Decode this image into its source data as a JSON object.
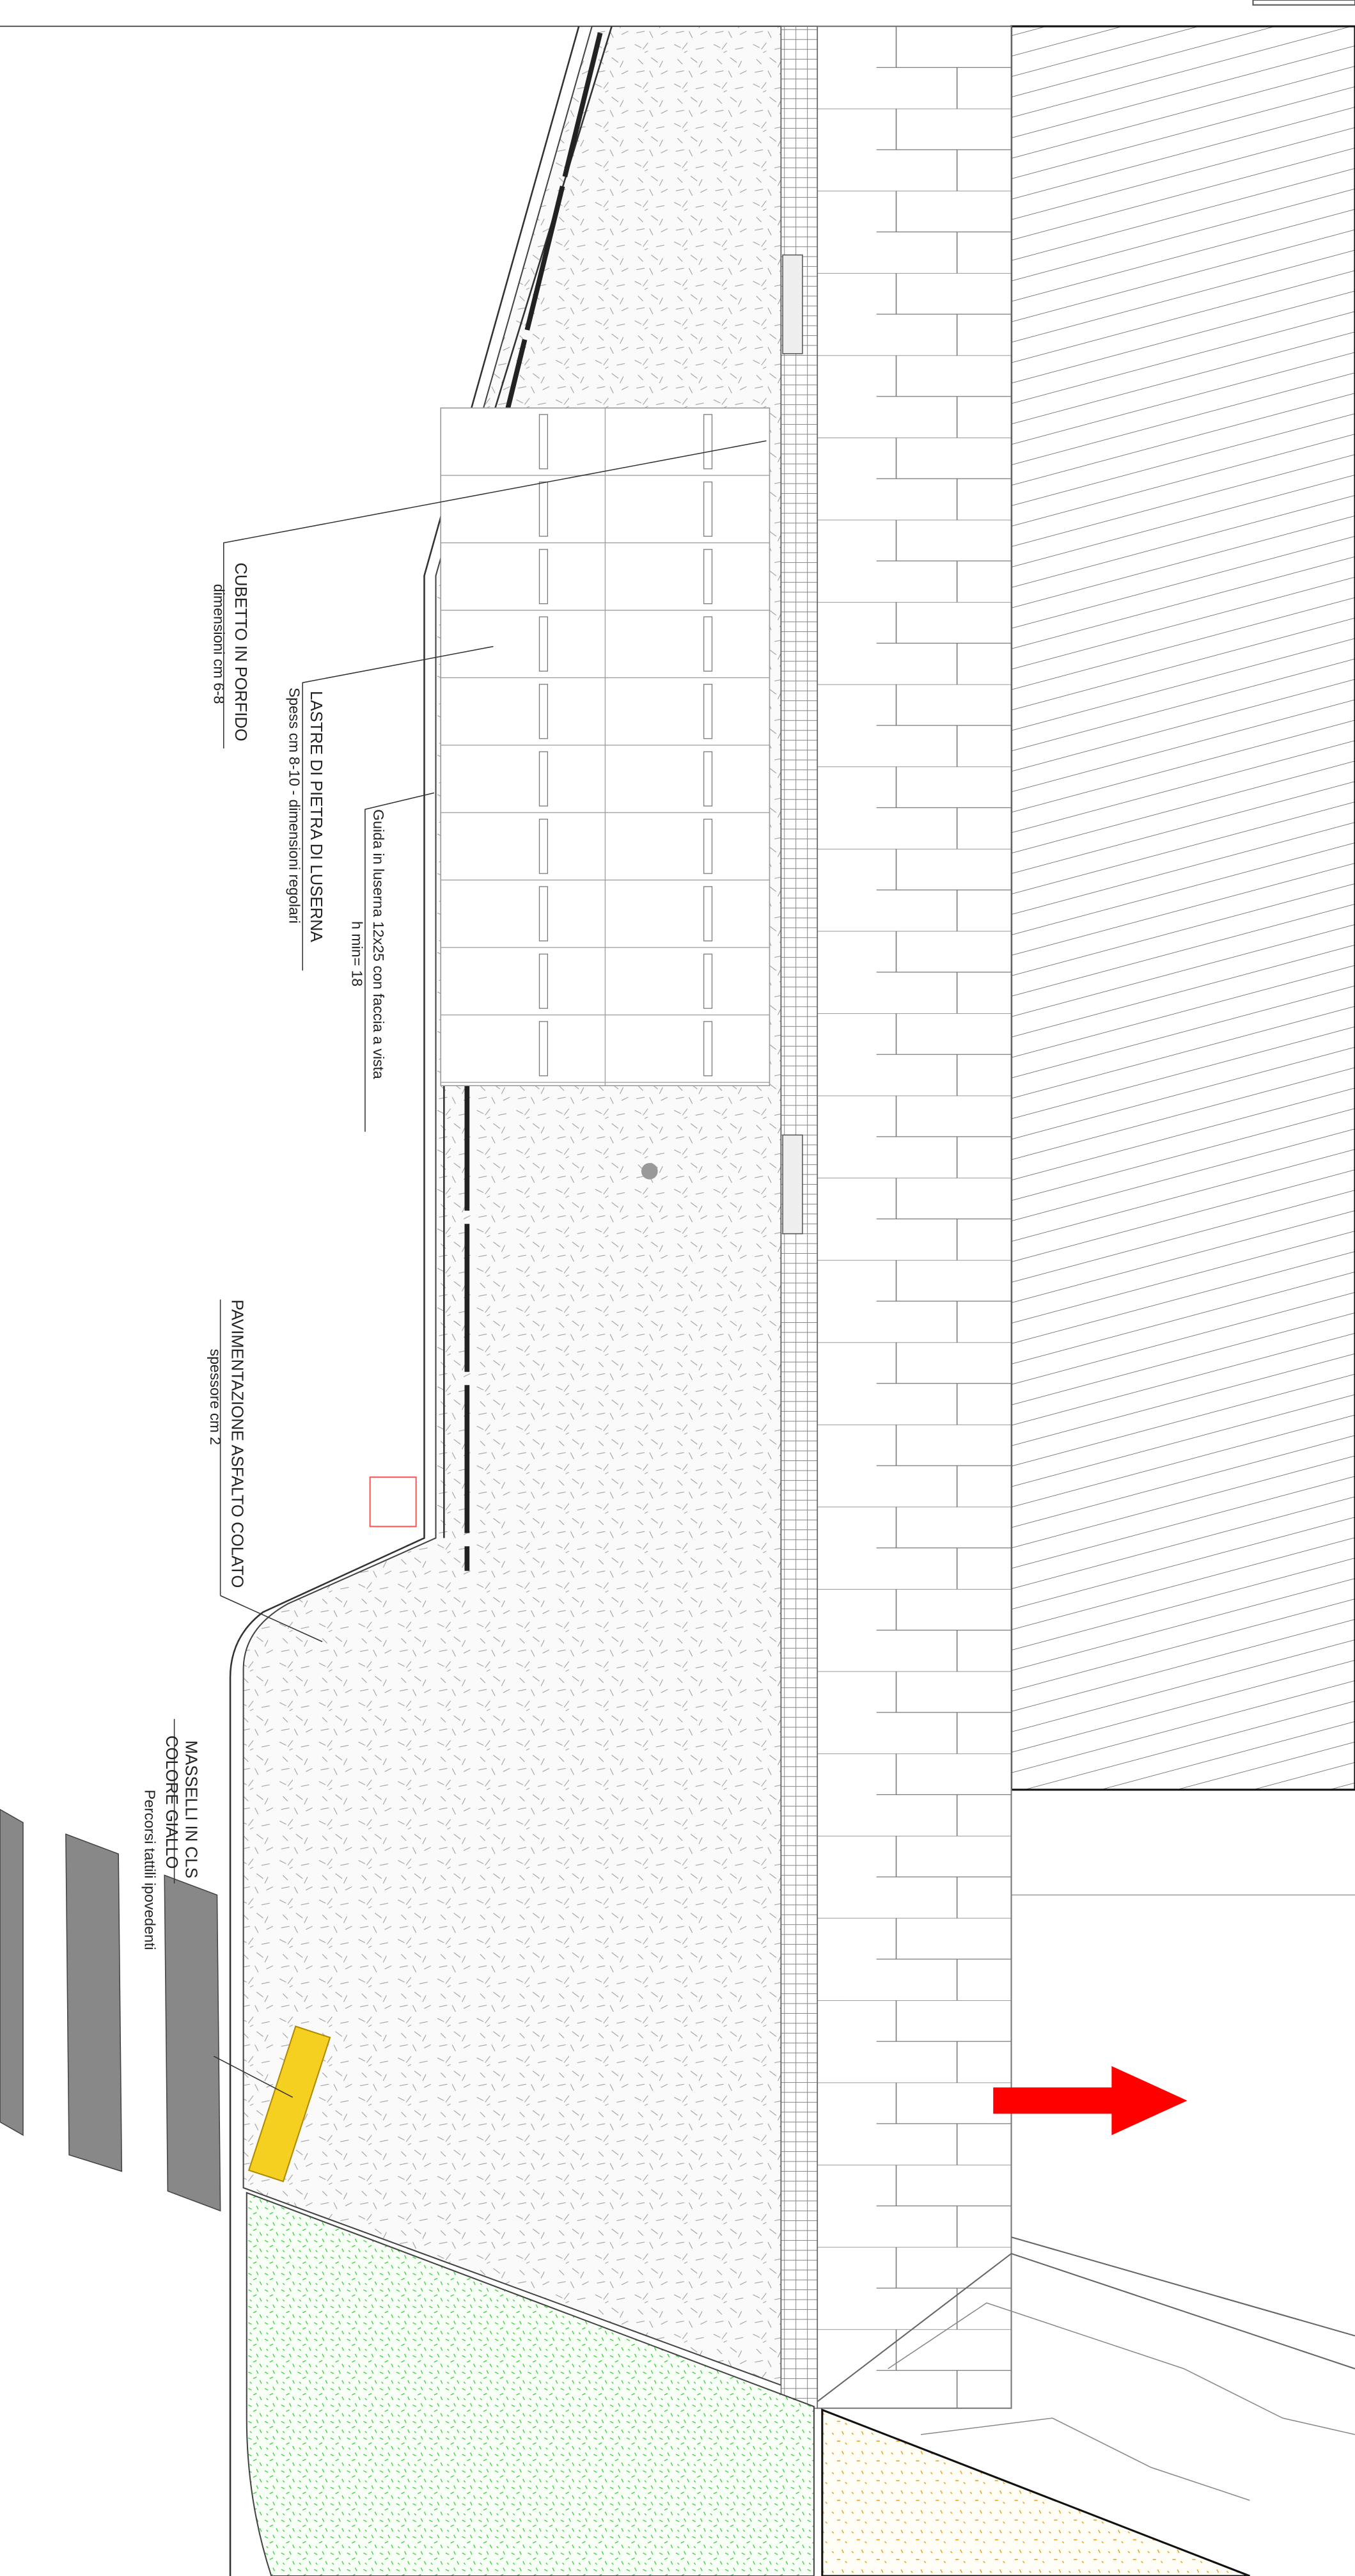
{
  "labels": [
    {
      "lines": [
        "CUBETTO IN PORFIDO",
        "dimensioni cm 6-8"
      ]
    },
    {
      "lines": [
        "LASTRE DI PIETRA DI LUSERNA",
        "Spess cm 8-10 - dimensioni regolari"
      ]
    },
    {
      "lines": [
        "Guida in luserna 12x25 con faccia a vista",
        "h min= 18"
      ]
    },
    {
      "lines": [
        "PAVIMENTAZIONE ASFALTO COLATO",
        "spessore cm 2"
      ]
    },
    {
      "lines": [
        "MASSELLI IN CLS",
        "COLORE GIALLO",
        "Percorsi tattili ipovedenti"
      ]
    }
  ]
}
